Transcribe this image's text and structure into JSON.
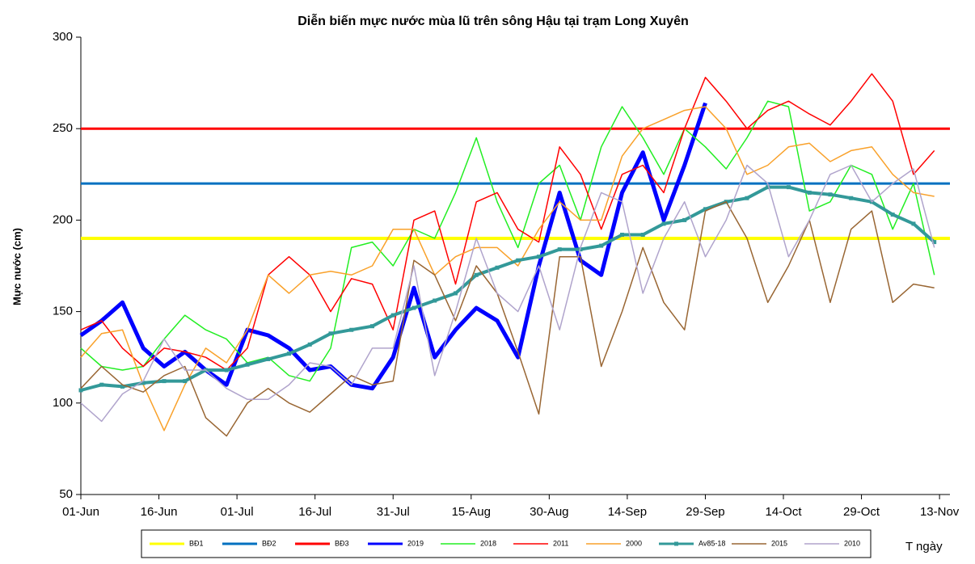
{
  "chart_data": {
    "type": "line",
    "title": "Diễn biến mực nước mùa lũ trên sông Hậu tại trạm Long Xuyên",
    "y_label": "Mực nước (cm)",
    "x_label": "T ngày",
    "x": [
      0,
      4,
      8,
      12,
      16,
      20,
      24,
      28,
      32,
      36,
      40,
      44,
      48,
      52,
      56,
      60,
      64,
      68,
      72,
      76,
      80,
      84,
      88,
      92,
      96,
      100,
      104,
      108,
      112,
      116,
      120,
      124,
      128,
      132,
      136,
      140,
      144,
      148,
      152,
      156,
      160,
      164
    ],
    "xlim": [
      0,
      167
    ],
    "xticks": [
      {
        "value": 0,
        "label": "01-Jun"
      },
      {
        "value": 15,
        "label": "16-Jun"
      },
      {
        "value": 30,
        "label": "01-Jul"
      },
      {
        "value": 45,
        "label": "16-Jul"
      },
      {
        "value": 60,
        "label": "31-Jul"
      },
      {
        "value": 75,
        "label": "15-Aug"
      },
      {
        "value": 90,
        "label": "30-Aug"
      },
      {
        "value": 105,
        "label": "14-Sep"
      },
      {
        "value": 120,
        "label": "29-Sep"
      },
      {
        "value": 135,
        "label": "14-Oct"
      },
      {
        "value": 150,
        "label": "29-Oct"
      },
      {
        "value": 165,
        "label": "13-Nov"
      }
    ],
    "ylim": [
      50,
      300
    ],
    "yticks": [
      50,
      100,
      150,
      200,
      250,
      300
    ],
    "series": [
      {
        "name": "BĐ1",
        "color": "#ffff00",
        "width": 4,
        "level": 190
      },
      {
        "name": "BĐ2",
        "color": "#0070c0",
        "width": 3,
        "level": 220
      },
      {
        "name": "BĐ3",
        "color": "#ff0000",
        "width": 3,
        "level": 250
      },
      {
        "name": "2019",
        "color": "#0000ff",
        "width": 5,
        "values": [
          137,
          145,
          155,
          130,
          120,
          128,
          118,
          110,
          140,
          137,
          130,
          118,
          120,
          110,
          108,
          125,
          163,
          125,
          140,
          152,
          145,
          125,
          175,
          215,
          178,
          170,
          215,
          237,
          200,
          230,
          264,
          null,
          null,
          null,
          null,
          null,
          null,
          null,
          null,
          null,
          null,
          null
        ]
      },
      {
        "name": "2018",
        "color": "#22ee22",
        "width": 1.5,
        "values": [
          130,
          120,
          118,
          120,
          135,
          148,
          140,
          135,
          122,
          125,
          115,
          112,
          130,
          185,
          188,
          175,
          195,
          190,
          215,
          245,
          210,
          185,
          220,
          230,
          200,
          240,
          262,
          245,
          225,
          250,
          240,
          228,
          245,
          265,
          262,
          205,
          210,
          230,
          225,
          195,
          220,
          170
        ]
      },
      {
        "name": "2011",
        "color": "#ff0000",
        "width": 1.5,
        "values": [
          140,
          145,
          130,
          120,
          130,
          128,
          125,
          118,
          130,
          170,
          180,
          170,
          150,
          168,
          165,
          140,
          200,
          205,
          165,
          210,
          215,
          195,
          188,
          240,
          225,
          195,
          225,
          230,
          215,
          250,
          278,
          265,
          250,
          260,
          265,
          258,
          252,
          265,
          280,
          265,
          225,
          238
        ]
      },
      {
        "name": "2000",
        "color": "#f9a12a",
        "width": 1.5,
        "values": [
          125,
          138,
          140,
          110,
          85,
          110,
          130,
          122,
          140,
          170,
          160,
          170,
          172,
          170,
          175,
          195,
          195,
          170,
          180,
          185,
          185,
          175,
          195,
          210,
          200,
          200,
          235,
          250,
          255,
          260,
          262,
          250,
          225,
          230,
          240,
          242,
          232,
          238,
          240,
          225,
          215,
          213
        ]
      },
      {
        "name": "Av85-18",
        "color": "#339999",
        "width": 4,
        "marker": "square",
        "values": [
          107,
          110,
          109,
          111,
          112,
          112,
          118,
          118,
          121,
          124,
          127,
          132,
          138,
          140,
          142,
          148,
          152,
          156,
          160,
          170,
          174,
          178,
          180,
          184,
          184,
          186,
          192,
          192,
          198,
          200,
          206,
          210,
          212,
          218,
          218,
          215,
          214,
          212,
          210,
          203,
          198,
          188
        ]
      },
      {
        "name": "2015",
        "color": "#996633",
        "width": 1.5,
        "values": [
          108,
          120,
          110,
          106,
          115,
          120,
          92,
          82,
          100,
          108,
          100,
          95,
          105,
          115,
          110,
          112,
          178,
          170,
          145,
          175,
          160,
          128,
          94,
          180,
          180,
          120,
          150,
          185,
          155,
          140,
          205,
          210,
          190,
          155,
          175,
          200,
          155,
          195,
          205,
          155,
          165,
          163
        ]
      },
      {
        "name": "2010",
        "color": "#b0a4cc",
        "width": 1.5,
        "values": [
          100,
          90,
          105,
          112,
          135,
          118,
          118,
          108,
          102,
          102,
          110,
          122,
          120,
          110,
          130,
          130,
          175,
          115,
          150,
          190,
          160,
          150,
          175,
          140,
          185,
          215,
          210,
          160,
          190,
          210,
          180,
          200,
          230,
          220,
          180,
          200,
          225,
          230,
          210,
          220,
          228,
          185
        ]
      }
    ]
  }
}
